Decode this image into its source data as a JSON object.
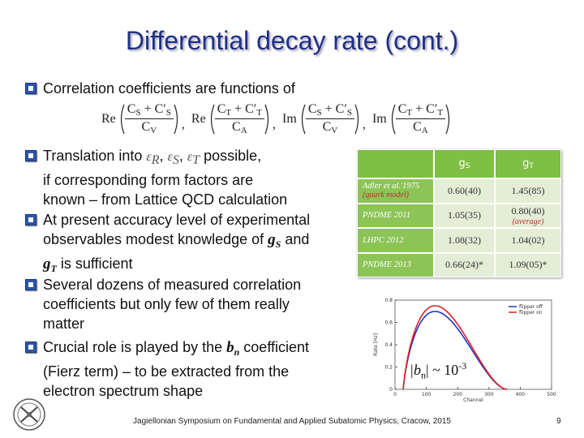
{
  "title": "Differential decay rate (cont.)",
  "bullets": [
    [
      "Correlation coefficients are functions of"
    ],
    [
      "Translation into ",
      "ε",
      "R",
      ", ",
      "ε",
      "S",
      ", ",
      "ε",
      "T",
      " possible,",
      "if corresponding form factors are",
      "known – from Lattice QCD calculation"
    ],
    [
      "At present accuracy level of experimental",
      "observables modest knowledge of ",
      "g",
      "S",
      " and",
      "g",
      "T",
      " is sufficient"
    ],
    [
      "Several dozens of measured correlation",
      "coefficients but only few of them really",
      "matter"
    ],
    [
      "Crucial role is played by the ",
      "b",
      "n",
      " coefficient",
      "(Fierz term) – to be extracted from the",
      "electron spectrum shape"
    ]
  ],
  "formula": {
    "terms": [
      {
        "op": "Re",
        "num": [
          "C",
          "S",
          " + ",
          "C′",
          "S"
        ],
        "den": [
          "C",
          "V"
        ]
      },
      {
        "op": "Re",
        "num": [
          "C",
          "T",
          " + ",
          "C′",
          "T"
        ],
        "den": [
          "C",
          "A"
        ]
      },
      {
        "op": "Im",
        "num": [
          "C",
          "S",
          " + ",
          "C′",
          "S"
        ],
        "den": [
          "C",
          "V"
        ]
      },
      {
        "op": "Im",
        "num": [
          "C",
          "T",
          " + ",
          "C′",
          "T"
        ],
        "den": [
          "C",
          "A"
        ]
      }
    ],
    "separator": ","
  },
  "table": {
    "header": [
      [
        "g",
        "S"
      ],
      [
        "g",
        "T"
      ]
    ],
    "rows": [
      [
        [
          "Adler et al.'1975",
          "(quark model)"
        ],
        [
          "0.60(40)"
        ],
        [
          "1.45(85)"
        ]
      ],
      [
        [
          "PNDME 2011"
        ],
        [
          "1.05(35)"
        ],
        [
          "0.80(40)",
          "(average)"
        ]
      ],
      [
        [
          "LHPC 2012"
        ],
        [
          "1.08(32)"
        ],
        [
          "1.04(02)"
        ]
      ],
      [
        [
          "PNDME 2013"
        ],
        [
          "0.66(24)*"
        ],
        [
          "1.09(05)*"
        ]
      ]
    ]
  },
  "inset": {
    "yticks": [
      0,
      0.2,
      0.4,
      0.6,
      0.8
    ],
    "xticks": [
      0,
      100,
      200,
      300,
      400,
      500
    ],
    "xlabel": "Channel",
    "ylabel": "Rate [Hz]",
    "legend": [
      "flipper off",
      "flipper on"
    ]
  },
  "annotation": [
    "|b",
    "n",
    "| ~ 10",
    "-3"
  ],
  "footer": "Jagiellonian Symposium on Fundamental and Applied Subatomic Physics, Cracow, 2015",
  "page": "9"
}
